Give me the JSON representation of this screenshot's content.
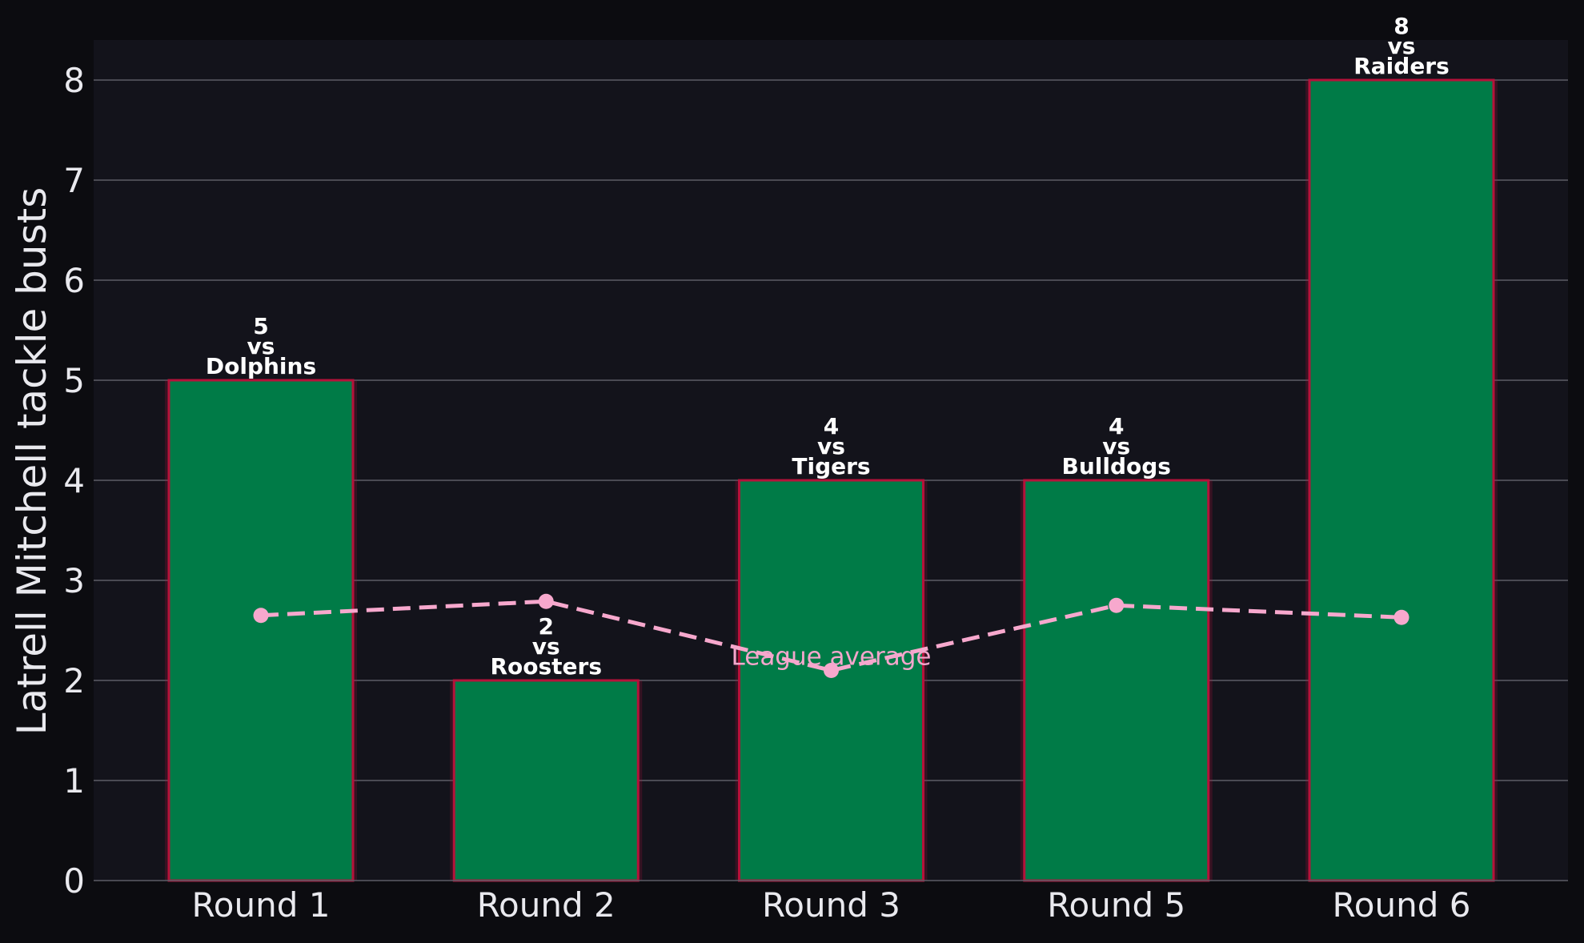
{
  "chart_data": {
    "type": "bar",
    "categories": [
      "Round 1",
      "Round 2",
      "Round 3",
      "Round 5",
      "Round 6"
    ],
    "series": [
      {
        "values": [
          5,
          2,
          4,
          4,
          8
        ],
        "opponents": [
          "Dolphins",
          "Roosters",
          "Tigers",
          "Bulldogs",
          "Raiders"
        ],
        "connector": "vs",
        "color": "#007b47",
        "edge_color": "#b5123a"
      },
      {
        "name": "League average",
        "type": "line",
        "values": [
          2.65,
          2.79,
          2.1,
          2.75,
          2.63
        ],
        "color": "#f7a8cd",
        "style": "dashed"
      }
    ],
    "xlabel": "",
    "ylabel": "Latrell Mitchell tackle busts",
    "ylim": [
      0,
      8.4
    ],
    "yticks": [
      0,
      1,
      2,
      3,
      4,
      5,
      6,
      7,
      8
    ],
    "grid": "horizontal",
    "background": "#13131b",
    "figure_background": "#0c0c10",
    "grid_color": "#5c5c66"
  }
}
